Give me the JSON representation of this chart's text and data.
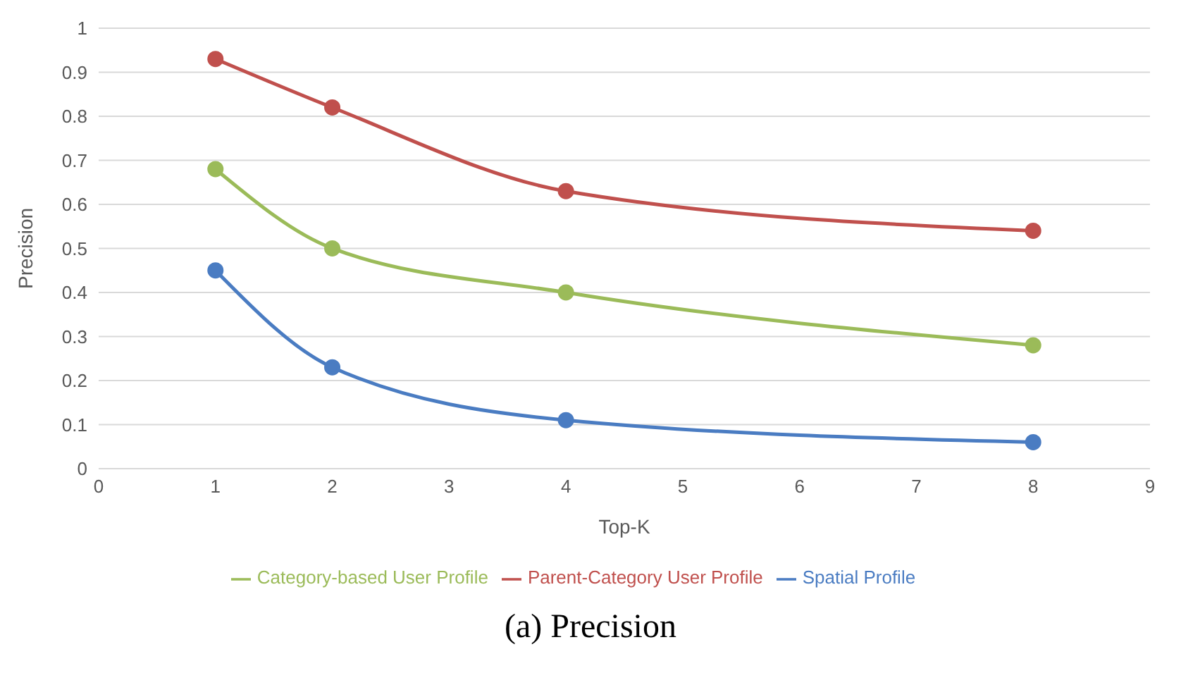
{
  "chart_data": {
    "type": "line",
    "title": "(a) Precision",
    "xlabel": "Top-K",
    "ylabel": "Precision",
    "x": [
      1,
      2,
      4,
      8
    ],
    "series": [
      {
        "name": "Spatial Profile",
        "color": "#4a7cc2",
        "values": [
          0.45,
          0.23,
          0.11,
          0.06
        ]
      },
      {
        "name": "Parent-Category User Profile",
        "color": "#c0504d",
        "values": [
          0.93,
          0.82,
          0.63,
          0.54
        ]
      },
      {
        "name": "Category-based User Profile",
        "color": "#9bbb59",
        "values": [
          0.68,
          0.5,
          0.4,
          0.28
        ]
      }
    ],
    "xlim": [
      0,
      9
    ],
    "xticks": [
      0,
      1,
      2,
      3,
      4,
      5,
      6,
      7,
      8,
      9
    ],
    "ylim": [
      0,
      1
    ],
    "yticks": [
      0,
      0.1,
      0.2,
      0.3,
      0.4,
      0.5,
      0.6,
      0.7,
      0.8,
      0.9,
      1
    ],
    "grid": "y",
    "legend": "bottom",
    "marker": "circle",
    "line_style": "solid"
  }
}
